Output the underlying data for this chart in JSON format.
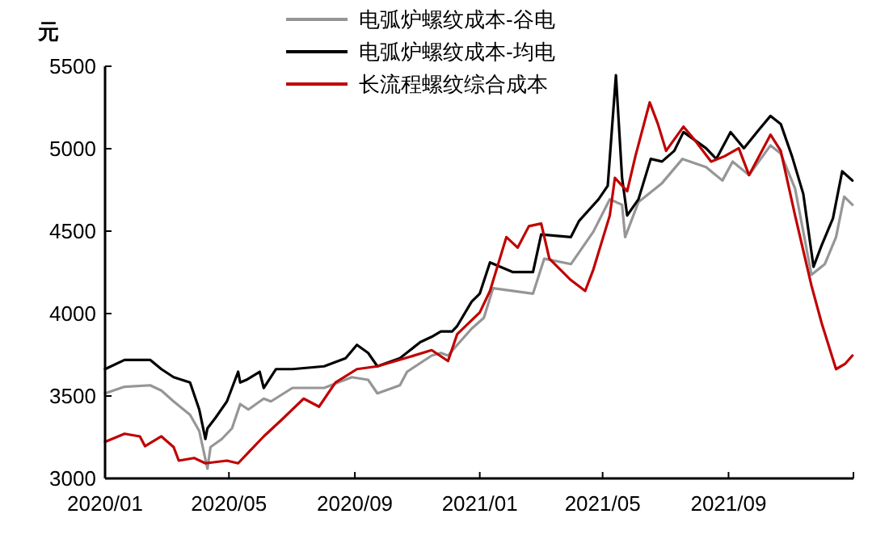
{
  "chart_data": {
    "type": "line",
    "ylabel": "元",
    "xlim": [
      "2020-01",
      "2022-01"
    ],
    "xticks": [
      {
        "value": "2020-01",
        "label": "2020/01"
      },
      {
        "value": "2020-05",
        "label": "2020/05"
      },
      {
        "value": "2020-09",
        "label": "2020/09"
      },
      {
        "value": "2021-01",
        "label": "2021/01"
      },
      {
        "value": "2021-05",
        "label": "2021/05"
      },
      {
        "value": "2021-09",
        "label": "2021/09"
      },
      {
        "value": "2022-01",
        "label": null
      }
    ],
    "ylim": [
      3000,
      5500
    ],
    "yticks": [
      3000,
      3500,
      4000,
      4500,
      5000,
      5500
    ],
    "grid": false,
    "legend": "top",
    "marker": "none",
    "line_style": "solid",
    "series": [
      {
        "name": "电弧炉螺纹成本-谷电",
        "color": "#969696",
        "x": [
          "2020-01-01",
          "2020-01-20",
          "2020-02-14",
          "2020-02-25",
          "2020-03-08",
          "2020-03-24",
          "2020-04-02",
          "2020-04-10",
          "2020-04-13",
          "2020-04-24",
          "2020-05-04",
          "2020-05-12",
          "2020-05-20",
          "2020-06-04",
          "2020-06-11",
          "2020-07-02",
          "2020-08-02",
          "2020-08-29",
          "2020-09-14",
          "2020-09-23",
          "2020-10-15",
          "2020-10-22",
          "2020-11-15",
          "2020-11-24",
          "2020-12-01",
          "2020-12-10",
          "2020-12-24",
          "2021-01-05",
          "2021-01-14",
          "2021-02-22",
          "2021-03-05",
          "2021-03-31",
          "2021-04-22",
          "2021-05-08",
          "2021-05-20",
          "2021-05-23",
          "2021-06-05",
          "2021-06-28",
          "2021-07-18",
          "2021-08-10",
          "2021-08-26",
          "2021-09-05",
          "2021-09-21",
          "2021-10-12",
          "2021-10-22",
          "2021-11-05",
          "2021-11-21",
          "2021-12-04",
          "2021-12-15",
          "2021-12-23",
          "2021-12-31"
        ],
        "values": [
          3516,
          3556,
          3565,
          3533,
          3467,
          3386,
          3288,
          3059,
          3190,
          3239,
          3304,
          3451,
          3418,
          3484,
          3467,
          3549,
          3549,
          3614,
          3598,
          3516,
          3565,
          3647,
          3745,
          3761,
          3745,
          3810,
          3908,
          3974,
          4154,
          4121,
          4333,
          4300,
          4497,
          4693,
          4660,
          4464,
          4676,
          4791,
          4938,
          4889,
          4807,
          4922,
          4840,
          5020,
          4970,
          4758,
          4235,
          4300,
          4464,
          4709,
          4660
        ]
      },
      {
        "name": "电弧炉螺纹成本-均电",
        "color": "#000000",
        "x": [
          "2020-01-01",
          "2020-01-20",
          "2020-02-14",
          "2020-02-25",
          "2020-03-08",
          "2020-03-24",
          "2020-04-02",
          "2020-04-08",
          "2020-04-10",
          "2020-04-18",
          "2020-04-29",
          "2020-05-10",
          "2020-05-12",
          "2020-05-18",
          "2020-05-31",
          "2020-06-04",
          "2020-06-16",
          "2020-07-02",
          "2020-08-02",
          "2020-08-23",
          "2020-09-03",
          "2020-09-14",
          "2020-09-23",
          "2020-10-15",
          "2020-11-04",
          "2020-11-15",
          "2020-11-24",
          "2020-12-05",
          "2020-12-10",
          "2020-12-24",
          "2021-01-01",
          "2021-01-11",
          "2021-02-02",
          "2021-02-22",
          "2021-03-02",
          "2021-03-31",
          "2021-04-08",
          "2021-04-27",
          "2021-05-06",
          "2021-05-14",
          "2021-05-20",
          "2021-05-25",
          "2021-06-05",
          "2021-06-17",
          "2021-06-28",
          "2021-07-10",
          "2021-07-19",
          "2021-07-30",
          "2021-08-10",
          "2021-08-20",
          "2021-09-03",
          "2021-09-16",
          "2021-10-01",
          "2021-10-12",
          "2021-10-22",
          "2021-11-02",
          "2021-11-13",
          "2021-11-23",
          "2021-12-01",
          "2021-12-12",
          "2021-12-21",
          "2021-12-31"
        ],
        "values": [
          3663,
          3719,
          3719,
          3663,
          3614,
          3582,
          3418,
          3239,
          3304,
          3369,
          3467,
          3647,
          3582,
          3598,
          3647,
          3549,
          3663,
          3663,
          3680,
          3729,
          3810,
          3761,
          3680,
          3729,
          3827,
          3859,
          3892,
          3892,
          3925,
          4072,
          4121,
          4310,
          4252,
          4252,
          4480,
          4464,
          4562,
          4693,
          4775,
          5445,
          4823,
          4595,
          4693,
          4938,
          4922,
          4987,
          5101,
          5052,
          5003,
          4938,
          5101,
          5003,
          5118,
          5199,
          5150,
          4954,
          4726,
          4284,
          4415,
          4578,
          4863,
          4807
        ]
      },
      {
        "name": "长流程螺纹综合成本",
        "color": "#c00000",
        "x": [
          "2020-01-01",
          "2020-01-20",
          "2020-02-04",
          "2020-02-09",
          "2020-02-25",
          "2020-03-08",
          "2020-03-13",
          "2020-03-28",
          "2020-04-08",
          "2020-04-29",
          "2020-05-10",
          "2020-05-20",
          "2020-06-04",
          "2020-06-21",
          "2020-07-13",
          "2020-07-28",
          "2020-08-13",
          "2020-09-03",
          "2020-09-23",
          "2020-10-20",
          "2020-11-15",
          "2020-12-01",
          "2020-12-10",
          "2021-01-01",
          "2021-01-11",
          "2021-01-27",
          "2021-02-07",
          "2021-02-18",
          "2021-03-02",
          "2021-03-10",
          "2021-03-31",
          "2021-04-14",
          "2021-04-22",
          "2021-05-08",
          "2021-05-13",
          "2021-05-25",
          "2021-06-02",
          "2021-06-16",
          "2021-06-24",
          "2021-07-02",
          "2021-07-19",
          "2021-07-30",
          "2021-08-15",
          "2021-08-28",
          "2021-09-11",
          "2021-09-21",
          "2021-10-12",
          "2021-10-22",
          "2021-11-05",
          "2021-11-21",
          "2021-12-01",
          "2021-12-15",
          "2021-12-24",
          "2021-12-31"
        ],
        "values": [
          3222,
          3271,
          3255,
          3196,
          3255,
          3190,
          3108,
          3124,
          3092,
          3108,
          3092,
          3157,
          3255,
          3353,
          3484,
          3435,
          3582,
          3663,
          3680,
          3729,
          3778,
          3712,
          3876,
          4007,
          4137,
          4464,
          4400,
          4530,
          4546,
          4333,
          4203,
          4137,
          4268,
          4595,
          4823,
          4742,
          4954,
          5281,
          5150,
          4987,
          5134,
          5052,
          4922,
          4954,
          5003,
          4840,
          5085,
          4987,
          4595,
          4170,
          3941,
          3663,
          3696,
          3745
        ]
      }
    ]
  }
}
